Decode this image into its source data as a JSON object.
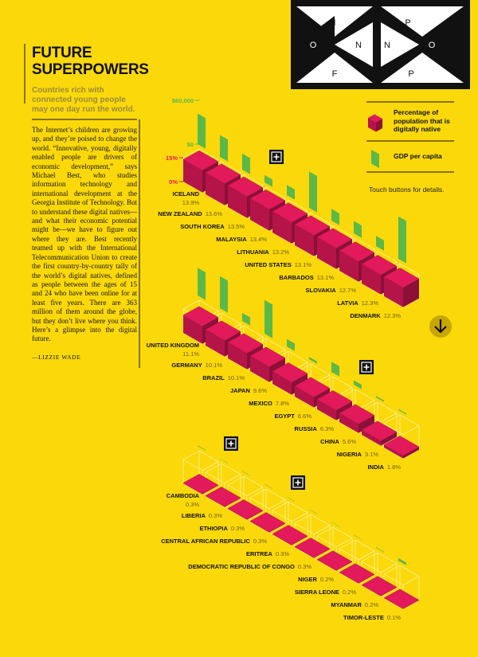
{
  "header": {
    "title": "FUTURE SUPERPOWERS",
    "subtitle": "Countries rich with connected young people may one day run the world.",
    "body": "The Internet’s children are growing up, and they’re poised to change the world. “Innovative, young, digitally enabled people are drivers of economic development,” says Michael Best, who studies information technology and international development at the Georgia Institute of Technology. But to understand these digital natives—and what their economic potential might be—we have to figure out where they are. Best recently teamed up with the International Telecommunication Union to create the first country-by-country tally of the world’s digital natives, defined as people between the ages of 15 and 24 who have been online for at least five years. There are 363 million of them around the globe, but they don’t live where you think. Here’s a glimpse into the digital future.",
    "byline": "—LIZZIE WADE"
  },
  "logo": {
    "letters": [
      "I",
      "P",
      "O",
      "N",
      "N",
      "O",
      "F",
      "P"
    ]
  },
  "hint": "Touch buttons for details.",
  "chart_data": {
    "type": "isometric-bar",
    "categories": [
      "ICELAND",
      "NEW ZEALAND",
      "SOUTH KOREA",
      "MALAYSIA",
      "LITHUANIA",
      "UNITED STATES",
      "BARBADOS",
      "SLOVAKIA",
      "LATVIA",
      "DENMARK",
      "UNITED KINGDOM",
      "GERMANY",
      "BRAZIL",
      "JAPAN",
      "MEXICO",
      "EGYPT",
      "RUSSIA",
      "CHINA",
      "NIGERIA",
      "INDIA",
      "CAMBODIA",
      "LIBERIA",
      "ETHIOPIA",
      "CENTRAL AFRICAN REPUBLIC",
      "ERITREA",
      "DEMOCRATIC REPUBLIC OF CONGO",
      "NIGER",
      "SIERRA LEONE",
      "MYANMAR",
      "TIMOR-LESTE"
    ],
    "series": [
      {
        "name": "Percentage of population that is digitally native",
        "color": "#e2195b",
        "values": [
          13.9,
          13.6,
          13.5,
          13.4,
          13.2,
          13.1,
          13.1,
          12.7,
          12.3,
          12.3,
          11.1,
          10.1,
          10.1,
          9.6,
          7.8,
          6.6,
          6.3,
          5.6,
          3.1,
          1.8,
          0.3,
          0.3,
          0.3,
          0.3,
          0.3,
          0.3,
          0.2,
          0.2,
          0.2,
          0.1
        ],
        "value_labels": [
          "13.9%",
          "13.6%",
          "13.5%",
          "13.4%",
          "13.2%",
          "13.1%",
          "13.1%",
          "12.7%",
          "12.3%",
          "12.3%",
          "11.1%",
          "10.1%",
          "10.1%",
          "9.6%",
          "7.8%",
          "6.6%",
          "6.3%",
          "5.6%",
          "3.1%",
          "1.8%",
          "0.3%",
          "0.3%",
          "0.3%",
          "0.3%",
          "0.3%",
          "0.3%",
          "0.2%",
          "0.2%",
          "0.2%",
          "0.1%"
        ]
      },
      {
        "name": "GDP per capita",
        "color": "#5cb848",
        "axis": "y2",
        "values": [
          42000,
          30000,
          22000,
          10000,
          14000,
          50000,
          16000,
          17000,
          14000,
          58000,
          38000,
          44000,
          11000,
          46000,
          10000,
          3000,
          14000,
          6000,
          2000,
          1500,
          900,
          400,
          500,
          500,
          500,
          400,
          400,
          600,
          900,
          3500
        ]
      }
    ],
    "ylim": [
      0,
      15
    ],
    "yticks": [
      {
        "value": 0,
        "label": "0%"
      },
      {
        "value": 15,
        "label": "15%"
      }
    ],
    "y2lim": [
      0,
      60000
    ],
    "y2ticks": [
      {
        "value": 0,
        "label": "$0"
      },
      {
        "value": 60000,
        "label": "$60,000"
      }
    ]
  }
}
